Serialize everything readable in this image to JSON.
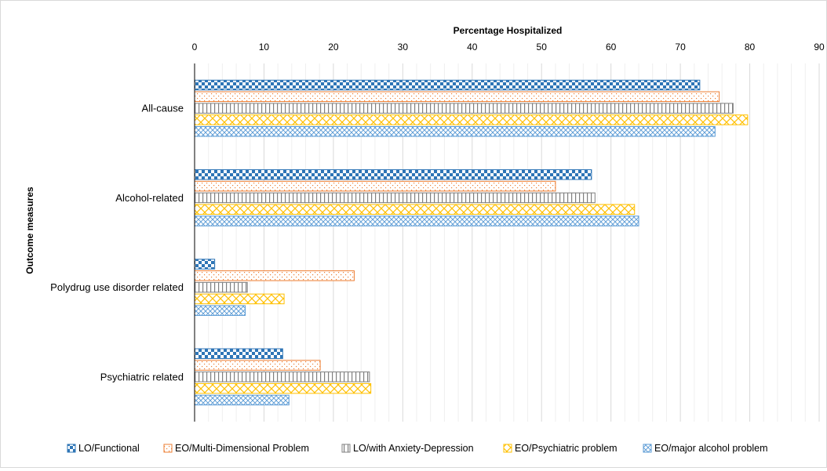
{
  "chart_data": {
    "type": "bar",
    "orientation": "horizontal",
    "title": "",
    "xlabel": "Percentage Hospitalized",
    "ylabel": "Outcome measures",
    "xlim": [
      0,
      90
    ],
    "x_ticks": [
      0,
      10,
      20,
      30,
      40,
      50,
      60,
      70,
      80,
      90
    ],
    "x_axis_position": "top",
    "grid": true,
    "legend_position": "bottom",
    "categories": [
      "All-cause",
      "Alcohol-related",
      "Polydrug use disorder related",
      "Psychiatric related"
    ],
    "series": [
      {
        "name": "LO/Functional",
        "color": "#2e75b6",
        "pattern": "checker",
        "values": [
          72.8,
          57.2,
          2.9,
          12.7
        ]
      },
      {
        "name": "EO/Multi-Dimensional Problem",
        "color": "#ed7d31",
        "pattern": "dots",
        "values": [
          75.6,
          52.0,
          23.0,
          18.1
        ]
      },
      {
        "name": "LO/with Anxiety-Depression",
        "color": "#7f7f7f",
        "pattern": "vertical-lines",
        "values": [
          77.6,
          57.7,
          7.6,
          25.2
        ]
      },
      {
        "name": "EO/Psychiatric problem",
        "color": "#ffc000",
        "pattern": "cross-hatch",
        "values": [
          79.7,
          63.4,
          12.9,
          25.4
        ]
      },
      {
        "name": "EO/major alcohol problem",
        "color": "#5b9bd5",
        "pattern": "diamond",
        "values": [
          75.0,
          64.0,
          7.3,
          13.6
        ]
      }
    ]
  }
}
